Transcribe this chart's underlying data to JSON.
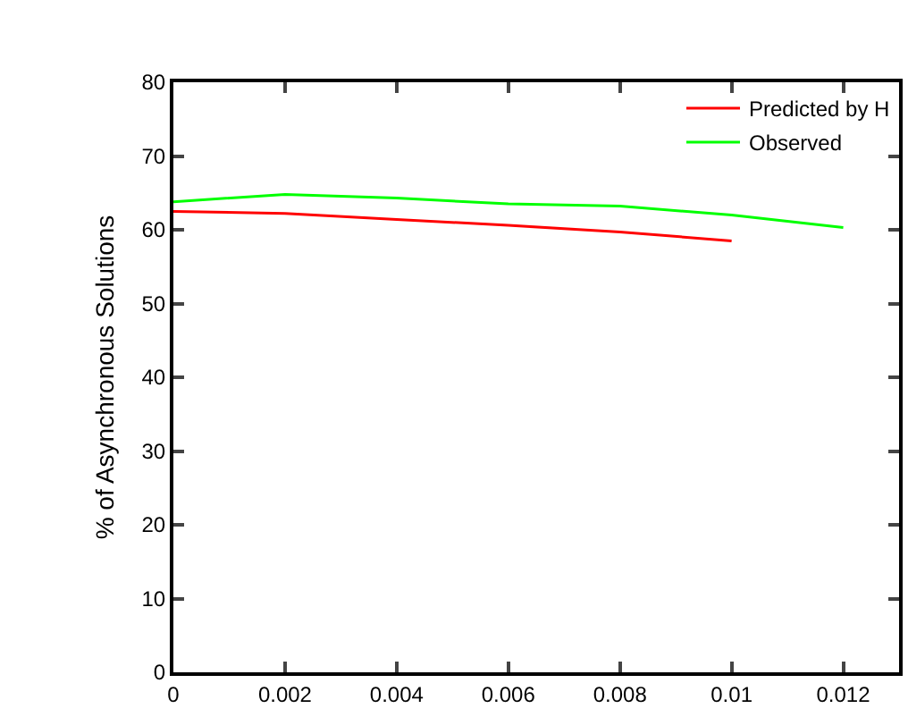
{
  "chart_data": {
    "type": "line",
    "ylabel": "% of Asynchronous Solutions",
    "x": [
      0,
      0.002,
      0.004,
      0.006,
      0.008,
      0.01,
      0.012
    ],
    "series": [
      {
        "name": "Predicted by H",
        "color": "#ff0000",
        "values": [
          62.5,
          62.2,
          61.4,
          60.6,
          59.7,
          58.5,
          null
        ]
      },
      {
        "name": "Observed",
        "color": "#00ff00",
        "values": [
          63.8,
          64.8,
          64.3,
          63.5,
          63.2,
          62.0,
          60.3
        ]
      }
    ],
    "xlim": [
      0,
      0.013
    ],
    "xticks": [
      0,
      0.002,
      0.004,
      0.006,
      0.008,
      0.01,
      0.012
    ],
    "ylim": [
      0,
      80
    ],
    "yticks": [
      0,
      10,
      20,
      30,
      40,
      50,
      60,
      70,
      80
    ],
    "grid": false,
    "legend": "top right",
    "marker": "none",
    "line_style": "solid"
  }
}
